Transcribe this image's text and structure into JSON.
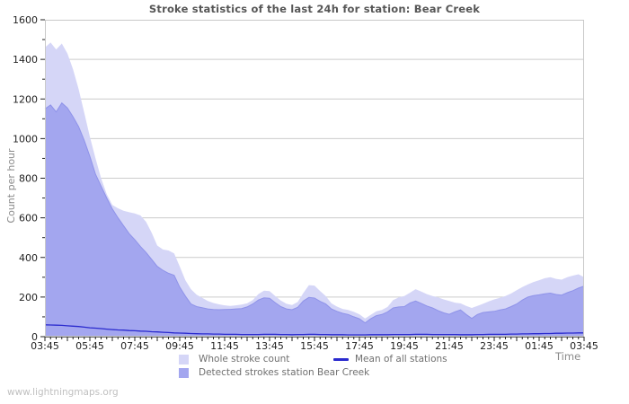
{
  "page": {
    "watermark": "www.lightningmaps.org"
  },
  "chart_data": {
    "type": "area",
    "title": "Stroke statistics of the last 24h for station: Bear Creek",
    "ylabel": "Count per hour",
    "xlabel": "Time",
    "ylim": [
      0,
      1600
    ],
    "y_tick_labels": [
      "0",
      "200",
      "400",
      "600",
      "800",
      "1000",
      "1200",
      "1400",
      "1600"
    ],
    "y_minor_step": 100,
    "x_tick_labels": [
      "03:45",
      "05:45",
      "07:45",
      "09:45",
      "11:45",
      "13:45",
      "15:45",
      "17:45",
      "19:45",
      "21:45",
      "23:45",
      "01:45",
      "03:45"
    ],
    "x_minutes_per_point": 15,
    "grid": "horizontal",
    "legend_position": "bottom",
    "colors": {
      "whole_area": "#d5d6f7",
      "detected_area": "#a3a6ef",
      "detected_edge": "#8f93e9",
      "mean_line": "#2a2ace",
      "gridline": "#cccccc",
      "frame": "#c9c9c9",
      "tick": "#222222",
      "tick_label": "#222222"
    },
    "series": [
      {
        "name": "Whole stroke count",
        "type": "area",
        "color": "#d5d6f7",
        "values": [
          1460,
          1485,
          1450,
          1480,
          1430,
          1350,
          1250,
          1130,
          1010,
          900,
          800,
          720,
          665,
          648,
          636,
          628,
          622,
          612,
          580,
          525,
          460,
          440,
          435,
          420,
          355,
          285,
          240,
          212,
          196,
          180,
          170,
          163,
          158,
          155,
          158,
          162,
          168,
          185,
          215,
          232,
          230,
          205,
          182,
          166,
          160,
          175,
          220,
          260,
          258,
          230,
          205,
          168,
          152,
          140,
          135,
          125,
          113,
          92,
          110,
          128,
          135,
          150,
          185,
          198,
          205,
          222,
          240,
          228,
          215,
          205,
          198,
          188,
          180,
          172,
          168,
          155,
          145,
          155,
          166,
          178,
          188,
          196,
          205,
          218,
          235,
          250,
          264,
          276,
          285,
          295,
          300,
          292,
          288,
          300,
          308,
          315,
          300
        ]
      },
      {
        "name": "Detected strokes station Bear Creek",
        "type": "area",
        "color": "#a3a6ef",
        "values": [
          1150,
          1170,
          1135,
          1180,
          1155,
          1110,
          1060,
          990,
          910,
          820,
          760,
          700,
          645,
          600,
          560,
          520,
          490,
          455,
          425,
          390,
          355,
          335,
          320,
          310,
          250,
          205,
          165,
          152,
          146,
          140,
          137,
          136,
          137,
          138,
          140,
          142,
          150,
          165,
          185,
          196,
          194,
          172,
          152,
          140,
          136,
          148,
          180,
          198,
          195,
          178,
          165,
          140,
          128,
          118,
          112,
          100,
          90,
          70,
          90,
          106,
          112,
          125,
          145,
          150,
          152,
          170,
          180,
          168,
          155,
          145,
          132,
          120,
          113,
          125,
          135,
          112,
          92,
          112,
          122,
          125,
          128,
          135,
          140,
          152,
          165,
          185,
          200,
          207,
          211,
          216,
          220,
          213,
          210,
          222,
          232,
          245,
          255
        ]
      },
      {
        "name": "Mean of all stations",
        "type": "line",
        "color": "#2a2ace",
        "values": [
          60,
          59,
          58,
          57,
          55,
          53,
          51,
          48,
          45,
          43,
          41,
          38,
          36,
          34,
          33,
          31,
          30,
          28,
          27,
          25,
          24,
          22,
          21,
          19,
          18,
          17,
          16,
          15,
          14,
          14,
          13,
          13,
          12,
          12,
          12,
          11,
          11,
          11,
          11,
          12,
          12,
          12,
          11,
          11,
          10,
          11,
          11,
          12,
          12,
          11,
          11,
          10,
          10,
          10,
          9,
          9,
          9,
          9,
          10,
          10,
          10,
          10,
          11,
          11,
          11,
          11,
          12,
          12,
          12,
          11,
          11,
          11,
          11,
          11,
          10,
          10,
          10,
          11,
          11,
          12,
          12,
          12,
          12,
          13,
          13,
          14,
          14,
          15,
          15,
          16,
          16,
          17,
          17,
          18,
          18,
          19,
          19
        ]
      }
    ]
  }
}
